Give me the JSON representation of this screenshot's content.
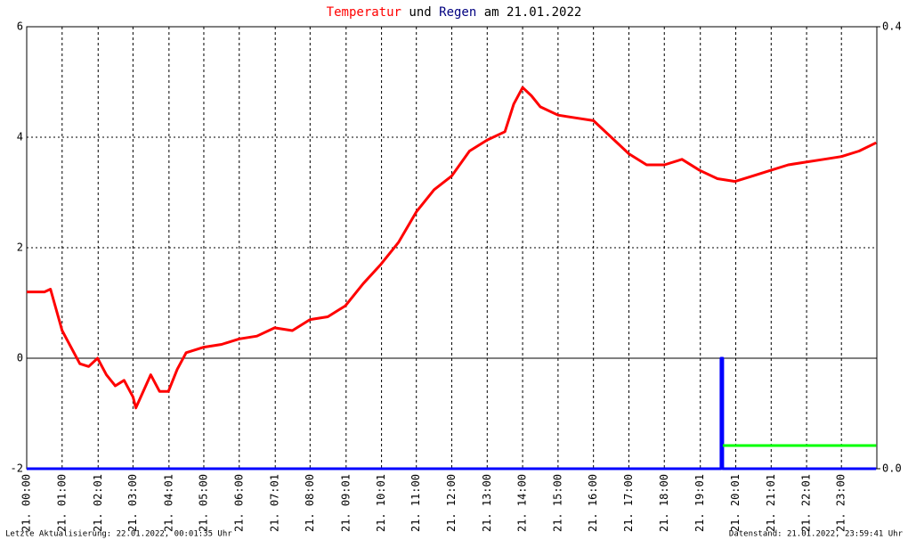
{
  "chart_data": {
    "type": "line",
    "title": [
      {
        "text": "Temperatur",
        "color": "#ff0000"
      },
      {
        "text": "und",
        "color": "#000000"
      },
      {
        "text": "Regen",
        "color": "#000080"
      },
      {
        "text": "am 21.01.2022",
        "color": "#000000"
      }
    ],
    "xlim": [
      0,
      24
    ],
    "xticks": [
      {
        "value": 0,
        "label": "21. 00:00"
      },
      {
        "value": 1,
        "label": "21. 01:00"
      },
      {
        "value": 2.017,
        "label": "21. 02:01"
      },
      {
        "value": 3,
        "label": "21. 03:00"
      },
      {
        "value": 4.017,
        "label": "21. 04:01"
      },
      {
        "value": 5,
        "label": "21. 05:00"
      },
      {
        "value": 6,
        "label": "21. 06:00"
      },
      {
        "value": 7.017,
        "label": "21. 07:01"
      },
      {
        "value": 8,
        "label": "21. 08:00"
      },
      {
        "value": 9.017,
        "label": "21. 09:01"
      },
      {
        "value": 10.017,
        "label": "21. 10:01"
      },
      {
        "value": 11,
        "label": "21. 11:00"
      },
      {
        "value": 12,
        "label": "21. 12:00"
      },
      {
        "value": 13,
        "label": "21. 13:00"
      },
      {
        "value": 14,
        "label": "21. 14:00"
      },
      {
        "value": 15,
        "label": "21. 15:00"
      },
      {
        "value": 16,
        "label": "21. 16:00"
      },
      {
        "value": 17,
        "label": "21. 17:00"
      },
      {
        "value": 18,
        "label": "21. 18:00"
      },
      {
        "value": 19.017,
        "label": "21. 19:01"
      },
      {
        "value": 20.017,
        "label": "21. 20:01"
      },
      {
        "value": 21.017,
        "label": "21. 21:01"
      },
      {
        "value": 22.017,
        "label": "21. 22:01"
      },
      {
        "value": 23,
        "label": "21. 23:00"
      }
    ],
    "ylim": [
      -2,
      6
    ],
    "yticks": [
      -2,
      0,
      2,
      4,
      6
    ],
    "y2lim": [
      0,
      0.4
    ],
    "y2ticks": [
      {
        "value": 0,
        "label": "0.0"
      },
      {
        "value": 0.4,
        "label": "0.4"
      }
    ],
    "grid": true,
    "series": [
      {
        "name": "Temperatur",
        "color": "#ff0000",
        "x": [
          0,
          0.5,
          0.67,
          1,
          1.5,
          1.75,
          2,
          2.25,
          2.5,
          2.75,
          3,
          3.08,
          3.5,
          3.75,
          4,
          4.25,
          4.5,
          5,
          5.5,
          6,
          6.5,
          7,
          7.5,
          8,
          8.5,
          9,
          9.5,
          10,
          10.5,
          11,
          11.5,
          12,
          12.5,
          13,
          13.5,
          13.75,
          14,
          14.25,
          14.5,
          15,
          15.5,
          16,
          16.5,
          17,
          17.5,
          18,
          18.5,
          19,
          19.5,
          20,
          20.5,
          21,
          21.5,
          22,
          22.5,
          23,
          23.5,
          23.98
        ],
        "values": [
          1.2,
          1.2,
          1.25,
          0.5,
          -0.1,
          -0.15,
          0,
          -0.3,
          -0.5,
          -0.4,
          -0.7,
          -0.9,
          -0.3,
          -0.6,
          -0.6,
          -0.2,
          0.1,
          0.2,
          0.25,
          0.35,
          0.4,
          0.55,
          0.5,
          0.7,
          0.75,
          0.95,
          1.35,
          1.7,
          2.1,
          2.65,
          3.05,
          3.3,
          3.75,
          3.95,
          4.1,
          4.6,
          4.9,
          4.75,
          4.55,
          4.4,
          4.35,
          4.3,
          4,
          3.7,
          3.5,
          3.5,
          3.6,
          3.4,
          3.25,
          3.2,
          3.3,
          3.4,
          3.5,
          3.55,
          3.6,
          3.65,
          3.75,
          3.9
        ]
      },
      {
        "name": "Regen",
        "color": "#0000ff",
        "axis": "y2",
        "x": [
          0,
          19.6,
          19.6,
          19.65,
          19.65,
          23.98
        ],
        "values": [
          0,
          0,
          0.1,
          0.1,
          0,
          0
        ]
      },
      {
        "color": "#00ff00",
        "axis": "y2",
        "x": [
          19.65,
          23.98
        ],
        "values": [
          0.021,
          0.021
        ]
      }
    ]
  },
  "footer": {
    "left": "Letzte Aktualisierung: 22.01.2022, 00:01:35 Uhr",
    "right": "Datenstand: 21.01.2022, 23:59:41 Uhr"
  }
}
